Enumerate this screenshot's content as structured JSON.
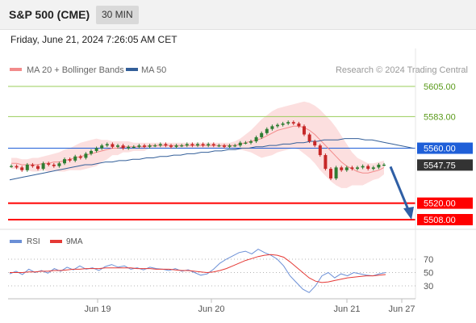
{
  "header": {
    "title": "S&P 500 (CME)",
    "interval": "30 MIN"
  },
  "datetime": "Friday, June 21, 2024 7:26:05 AM CET",
  "legend": {
    "ma20": {
      "label": "MA 20 + Bollinger Bands",
      "color": "#f28b8b"
    },
    "ma50": {
      "label": "MA 50",
      "color": "#335f99"
    }
  },
  "copyright": "Research © 2024 Trading Central",
  "colors": {
    "bull": "#2e7d32",
    "bear": "#c62828",
    "green_level": "#9acd5a",
    "green_text": "#5a9a1a",
    "red_level": "#ff0000",
    "blue_level": "#1f5fd8",
    "current": "#333333",
    "arrow": "#2f5fa5",
    "rsi": "#6b8fd6",
    "rsi_ma": "#e53935"
  },
  "chart_data": {
    "type": "candlestick",
    "y_range": [
      5500,
      5614
    ],
    "x_ticks": [
      "Jun 19",
      "Jun 20",
      "Jun 21",
      "Jun 27"
    ],
    "levels": [
      {
        "value": 5605.0,
        "label": "5605.00",
        "kind": "resistance-green"
      },
      {
        "value": 5583.0,
        "label": "5583.00",
        "kind": "resistance-green"
      },
      {
        "value": 5560.0,
        "label": "5560.00",
        "kind": "pivot-blue"
      },
      {
        "value": 5547.75,
        "label": "5547.75",
        "kind": "current"
      },
      {
        "value": 5520.0,
        "label": "5520.00",
        "kind": "support-red"
      },
      {
        "value": 5508.0,
        "label": "5508.00",
        "kind": "support-red"
      }
    ],
    "price": [
      5547,
      5546,
      5544,
      5548,
      5547,
      5545,
      5549,
      5548,
      5547,
      5549,
      5552,
      5551,
      5554,
      5553,
      5556,
      5558,
      5560,
      5562,
      5563,
      5561,
      5562,
      5560,
      5561,
      5561,
      5562,
      5561,
      5562,
      5562,
      5563,
      5562,
      5561,
      5562,
      5562,
      5563,
      5562,
      5563,
      5562,
      5563,
      5562,
      5562,
      5561,
      5562,
      5562,
      5564,
      5564,
      5565,
      5568,
      5571,
      5574,
      5576,
      5577,
      5578,
      5579,
      5578,
      5576,
      5570,
      5565,
      5562,
      5555,
      5545,
      5538,
      5546,
      5544,
      5546,
      5545,
      5546,
      5547,
      5545,
      5546,
      5548,
      5548
    ],
    "ma20": [
      5549,
      5549,
      5548,
      5548,
      5548,
      5548,
      5549,
      5549,
      5550,
      5550,
      5551,
      5552,
      5553,
      5554,
      5555,
      5556,
      5557,
      5558,
      5559,
      5560,
      5560,
      5561,
      5561,
      5561,
      5561,
      5561,
      5562,
      5562,
      5562,
      5562,
      5562,
      5562,
      5562,
      5562,
      5562,
      5562,
      5562,
      5562,
      5562,
      5562,
      5562,
      5562,
      5562,
      5563,
      5564,
      5565,
      5566,
      5567,
      5569,
      5571,
      5573,
      5574,
      5575,
      5576,
      5576,
      5575,
      5573,
      5570,
      5566,
      5562,
      5558,
      5554,
      5550,
      5547,
      5545,
      5543,
      5542,
      5542,
      5543,
      5544,
      5546
    ],
    "ma50": [
      5537,
      5538,
      5539,
      5540,
      5541,
      5542,
      5543,
      5544,
      5545,
      5546,
      5547,
      5548,
      5548,
      5549,
      5550,
      5550,
      5551,
      5551,
      5552,
      5552,
      5553,
      5553,
      5554,
      5554,
      5555,
      5555,
      5556,
      5556,
      5557,
      5557,
      5558,
      5558,
      5559,
      5559,
      5560,
      5560,
      5561,
      5561,
      5562,
      5562,
      5563,
      5563,
      5564,
      5564,
      5565,
      5565,
      5566,
      5566,
      5566,
      5567,
      5567,
      5567,
      5566,
      5566,
      5565,
      5564,
      5563,
      5562,
      5561,
      5560
    ],
    "bb_upper": [
      5553,
      5553,
      5552,
      5552,
      5553,
      5553,
      5554,
      5555,
      5556,
      5557,
      5559,
      5560,
      5562,
      5564,
      5565,
      5566,
      5567,
      5566,
      5566,
      5565,
      5565,
      5565,
      5565,
      5564,
      5564,
      5564,
      5564,
      5564,
      5564,
      5564,
      5564,
      5564,
      5564,
      5564,
      5564,
      5564,
      5564,
      5564,
      5564,
      5564,
      5564,
      5564,
      5565,
      5567,
      5570,
      5573,
      5577,
      5581,
      5584,
      5587,
      5589,
      5590,
      5591,
      5592,
      5593,
      5594,
      5593,
      5591,
      5588,
      5584,
      5580,
      5575,
      5569,
      5563,
      5557,
      5553,
      5551,
      5549,
      5549,
      5550,
      5551
    ],
    "bb_lower": [
      5545,
      5545,
      5544,
      5544,
      5543,
      5543,
      5544,
      5543,
      5544,
      5543,
      5543,
      5544,
      5544,
      5544,
      5545,
      5546,
      5547,
      5550,
      5552,
      5555,
      5555,
      5557,
      5557,
      5558,
      5558,
      5558,
      5560,
      5560,
      5560,
      5560,
      5560,
      5560,
      5560,
      5560,
      5560,
      5560,
      5560,
      5560,
      5560,
      5560,
      5560,
      5560,
      5559,
      5559,
      5558,
      5557,
      5555,
      5553,
      5554,
      5555,
      5557,
      5558,
      5559,
      5560,
      5559,
      5556,
      5553,
      5549,
      5544,
      5540,
      5536,
      5533,
      5531,
      5531,
      5533,
      5533,
      5533,
      5535,
      5537,
      5538,
      5541
    ],
    "projection": {
      "from": 5547.75,
      "to": 5508.0
    },
    "rsi": {
      "ticks": [
        70,
        50,
        30
      ],
      "range": [
        0,
        100
      ],
      "legend": {
        "rsi": "RSI",
        "ma": "9MA"
      },
      "rsi_values": [
        48,
        52,
        47,
        55,
        50,
        53,
        49,
        56,
        52,
        58,
        54,
        60,
        55,
        57,
        53,
        59,
        62,
        58,
        60,
        55,
        57,
        54,
        58,
        56,
        55,
        53,
        56,
        52,
        54,
        50,
        46,
        48,
        55,
        64,
        70,
        75,
        80,
        82,
        78,
        85,
        80,
        76,
        70,
        60,
        45,
        35,
        25,
        20,
        30,
        45,
        50,
        42,
        48,
        45,
        50,
        48,
        46,
        45,
        48,
        50
      ],
      "ma_values": [
        50,
        50,
        50,
        51,
        51,
        52,
        52,
        53,
        53,
        54,
        55,
        55,
        56,
        56,
        56,
        57,
        57,
        57,
        57,
        57,
        56,
        56,
        56,
        55,
        55,
        55,
        54,
        53,
        53,
        52,
        51,
        50,
        51,
        53,
        56,
        60,
        64,
        68,
        71,
        74,
        76,
        77,
        76,
        73,
        66,
        58,
        50,
        42,
        37,
        35,
        36,
        38,
        40,
        42,
        43,
        44,
        45,
        45,
        46,
        47
      ]
    }
  }
}
